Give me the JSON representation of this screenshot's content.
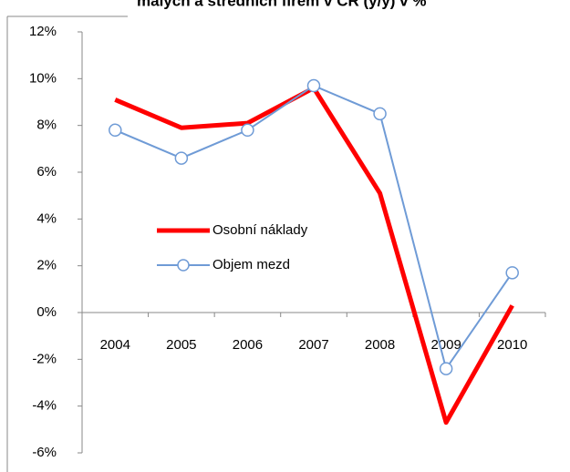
{
  "chart_data": {
    "type": "line",
    "title": "malých a středních firem v ČR (y/y) v %",
    "categories": [
      "2004",
      "2005",
      "2006",
      "2007",
      "2008",
      "2009",
      "2010"
    ],
    "series": [
      {
        "name": "Osobní náklady",
        "color": "#ff0000",
        "values": [
          9.1,
          7.9,
          8.1,
          9.6,
          5.1,
          -4.7,
          0.3
        ]
      },
      {
        "name": "Objem mezd",
        "color": "#6f9bd6",
        "values": [
          7.8,
          6.6,
          7.8,
          9.7,
          8.5,
          -2.4,
          1.7
        ]
      }
    ],
    "ylim": [
      -6,
      12
    ],
    "yticks": [
      {
        "value": -6,
        "label": "-6%"
      },
      {
        "value": -4,
        "label": "-4%"
      },
      {
        "value": -2,
        "label": "-2%"
      },
      {
        "value": 0,
        "label": "0%"
      },
      {
        "value": 2,
        "label": "2%"
      },
      {
        "value": 4,
        "label": "4%"
      },
      {
        "value": 6,
        "label": "6%"
      },
      {
        "value": 8,
        "label": "8%"
      },
      {
        "value": 10,
        "label": "10%"
      },
      {
        "value": 12,
        "label": "12%"
      }
    ],
    "grid": false
  }
}
